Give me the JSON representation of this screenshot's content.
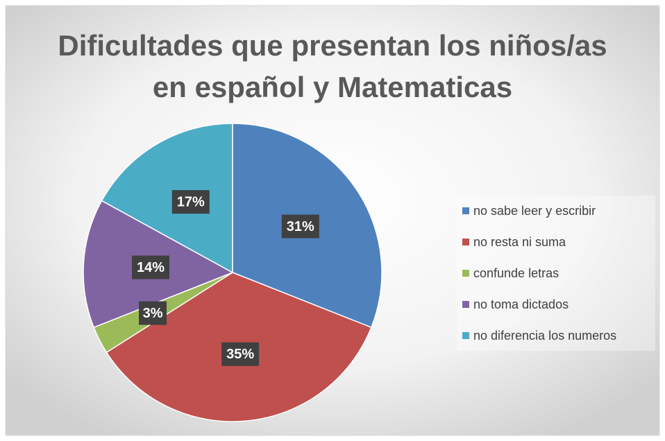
{
  "chart_data": {
    "type": "pie",
    "title": "Dificultades que presentan los niños/as en español y Matematicas",
    "categories": [
      "no sabe leer y escribir",
      "no resta ni suma",
      "confunde letras",
      "no toma dictados",
      "no diferencia los numeros"
    ],
    "values": [
      31,
      35,
      3,
      14,
      17
    ],
    "value_labels": [
      "31%",
      "35%",
      "3%",
      "14%",
      "17%"
    ],
    "colors": [
      "#4f81bd",
      "#c0504d",
      "#9bbb59",
      "#8064a2",
      "#4bacc6"
    ],
    "legend": "right"
  }
}
